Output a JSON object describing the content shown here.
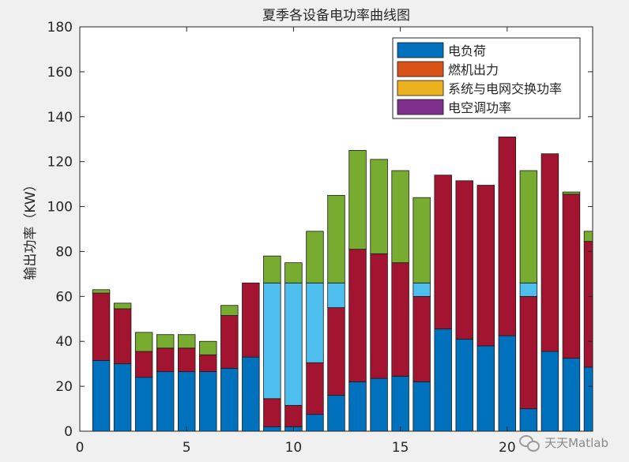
{
  "chart_data": {
    "type": "bar",
    "stacked": true,
    "title": "夏季各设备电功率曲线图",
    "xlabel": "",
    "ylabel": "输出功率（KW）",
    "xlim": [
      0,
      24
    ],
    "ylim": [
      0,
      180
    ],
    "xticks": [
      0,
      5,
      10,
      15,
      20
    ],
    "yticks": [
      0,
      20,
      40,
      60,
      80,
      100,
      120,
      140,
      160,
      180
    ],
    "legend_position": "top-right",
    "categories": [
      1,
      2,
      3,
      4,
      5,
      6,
      7,
      8,
      9,
      10,
      11,
      12,
      13,
      14,
      15,
      16,
      17,
      18,
      19,
      20,
      21,
      22,
      23,
      24
    ],
    "series": [
      {
        "name": "电负荷",
        "color": "#0072bd",
        "in_legend": true,
        "values": [
          31.5,
          30,
          24,
          26.5,
          26.5,
          26.5,
          28,
          33,
          2,
          2,
          7.5,
          16,
          22,
          23.5,
          24.5,
          22,
          45.5,
          41,
          38,
          42.5,
          10,
          35.5,
          32.5,
          28.5
        ]
      },
      {
        "name": "燃机出力",
        "color": "#a2142f",
        "in_legend": false,
        "values": [
          30,
          24.5,
          11.5,
          10.5,
          10.5,
          7.5,
          23.5,
          33,
          12.5,
          9.5,
          23,
          39,
          59,
          55.5,
          50.5,
          38,
          68.5,
          70.5,
          71.5,
          88.5,
          50,
          88,
          73,
          56
        ]
      },
      {
        "name": "系统与电网交换功率",
        "color": "#4dbeee",
        "in_legend": false,
        "values": [
          0,
          0,
          0,
          0,
          0,
          0,
          0,
          0,
          51.5,
          54.5,
          35.5,
          11,
          0,
          0,
          0,
          6,
          0,
          0,
          0,
          0,
          6,
          0,
          0,
          0
        ]
      },
      {
        "name": "电空调功率",
        "color": "#77ac30",
        "in_legend": false,
        "values": [
          1.5,
          2.5,
          8.5,
          6,
          6,
          6,
          4.5,
          0,
          12,
          9,
          23,
          39,
          44,
          42,
          41,
          38,
          0,
          0,
          0,
          0,
          50,
          0,
          1,
          4.5
        ]
      }
    ],
    "legend": [
      {
        "label": "电负荷",
        "color": "#0072bd"
      },
      {
        "label": "燃机出力",
        "color": "#d95319"
      },
      {
        "label": "系统与电网交换功率",
        "color": "#edb120"
      },
      {
        "label": "电空调功率",
        "color": "#7e2f8e"
      }
    ]
  },
  "watermark": {
    "text": "天天Matlab",
    "icon": "wechat-icon"
  }
}
